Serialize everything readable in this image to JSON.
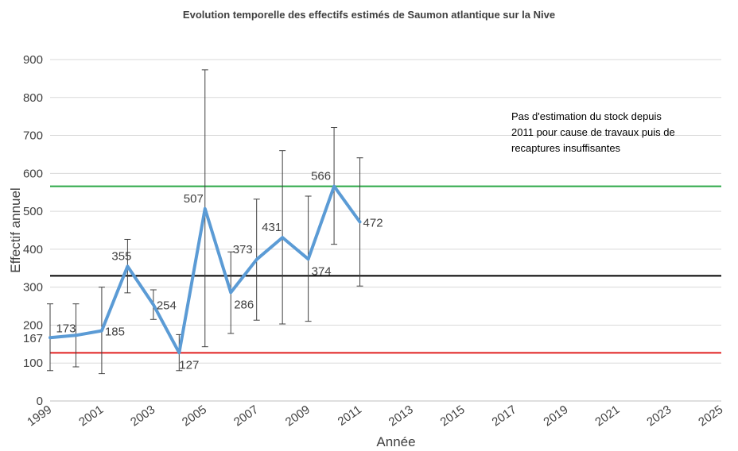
{
  "chart_data": {
    "type": "line",
    "title": "Evolution temporelle des effectifs estimés de Saumon atlantique sur la Nive",
    "xlabel": "Année",
    "ylabel": "Effectif annuel",
    "xlim": [
      1999,
      2025
    ],
    "ylim": [
      0,
      900
    ],
    "x_tick_labels": [
      "1999",
      "2001",
      "2003",
      "2005",
      "2007",
      "2009",
      "2011",
      "2013",
      "2015",
      "2017",
      "2019",
      "2021",
      "2023",
      "2025"
    ],
    "y_tick_labels": [
      "0",
      "100",
      "200",
      "300",
      "400",
      "500",
      "600",
      "700",
      "800",
      "900"
    ],
    "grid": "horizontal",
    "series": [
      {
        "color": "#5b9bd5",
        "x": [
          1999,
          2000,
          2001,
          2002,
          2003,
          2004,
          2005,
          2006,
          2007,
          2008,
          2009,
          2010,
          2011
        ],
        "values": [
          167,
          173,
          185,
          355,
          254,
          127,
          507,
          286,
          373,
          431,
          374,
          566,
          472
        ],
        "labels": [
          "167",
          "173",
          "185",
          "355",
          "254",
          "127",
          "507",
          "286",
          "373",
          "431",
          "374",
          "566",
          "472"
        ],
        "error_low": [
          80,
          90,
          72,
          285,
          215,
          80,
          143,
          178,
          213,
          203,
          210,
          413,
          303
        ],
        "error_high": [
          256,
          256,
          300,
          426,
          293,
          175,
          873,
          393,
          532,
          660,
          540,
          721,
          641
        ]
      }
    ],
    "reference_lines": [
      {
        "value": 566,
        "color": "#2aa846"
      },
      {
        "value": 330,
        "color": "#000000"
      },
      {
        "value": 127,
        "color": "#e02020"
      }
    ],
    "annotation": [
      "Pas d'estimation du stock depuis",
      "2011 pour cause de travaux puis de",
      "recaptures insuffisantes"
    ]
  }
}
